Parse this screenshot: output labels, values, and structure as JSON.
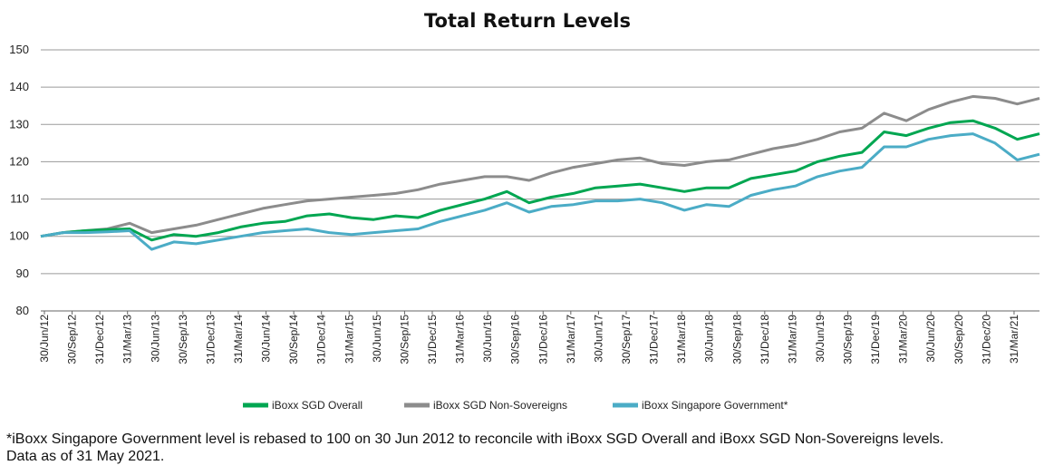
{
  "chart_data": {
    "type": "line",
    "title": "Total Return Levels",
    "ylim": [
      80,
      150
    ],
    "yticks": [
      80,
      90,
      100,
      110,
      120,
      130,
      140,
      150
    ],
    "grid": "horizontal",
    "legend_position": "bottom",
    "x_tick_labels": [
      "30/Jun/12",
      "30/Sep/12",
      "31/Dec/12",
      "31/Mar/13",
      "30/Jun/13",
      "30/Sep/13",
      "31/Dec/13",
      "31/Mar/14",
      "30/Jun/14",
      "30/Sep/14",
      "31/Dec/14",
      "31/Mar/15",
      "30/Jun/15",
      "30/Sep/15",
      "31/Dec/15",
      "31/Mar/16",
      "30/Jun/16",
      "30/Sep/16",
      "31/Dec/16",
      "31/Mar/17",
      "30/Jun/17",
      "30/Sep/17",
      "31/Dec/17",
      "31/Mar/18",
      "30/Jun/18",
      "30/Sep/18",
      "31/Dec/18",
      "31/Mar/19",
      "30/Jun/19",
      "30/Sep/19",
      "31/Dec/19",
      "31/Mar/20",
      "30/Jun/20",
      "30/Sep/20",
      "31/Dec/20",
      "31/Mar/21"
    ],
    "series": [
      {
        "name": "iBoxx SGD Overall",
        "color": "#00A651",
        "values": [
          100.0,
          101.0,
          101.5,
          101.8,
          102.0,
          99.0,
          100.5,
          100.0,
          101.0,
          102.5,
          103.5,
          104.0,
          105.5,
          106.0,
          105.0,
          104.5,
          105.5,
          105.0,
          107.0,
          108.5,
          110.0,
          112.0,
          109.0,
          110.5,
          111.5,
          113.0,
          113.5,
          114.0,
          113.0,
          112.0,
          113.0,
          113.0,
          115.5,
          116.5,
          117.5,
          120.0,
          121.5,
          122.5,
          128.0,
          127.0,
          129.0,
          130.5,
          131.0,
          129.0,
          126.0,
          127.5
        ]
      },
      {
        "name": "iBoxx SGD Non-Sovereigns",
        "color": "#8C8C8C",
        "values": [
          100.0,
          101.0,
          101.5,
          102.0,
          103.5,
          101.0,
          102.0,
          103.0,
          104.5,
          106.0,
          107.5,
          108.5,
          109.5,
          110.0,
          110.5,
          111.0,
          111.5,
          112.5,
          114.0,
          115.0,
          116.0,
          116.0,
          115.0,
          117.0,
          118.5,
          119.5,
          120.5,
          121.0,
          119.5,
          119.0,
          120.0,
          120.5,
          122.0,
          123.5,
          124.5,
          126.0,
          128.0,
          129.0,
          133.0,
          131.0,
          134.0,
          136.0,
          137.5,
          137.0,
          135.5,
          137.0
        ]
      },
      {
        "name": "iBoxx Singapore Government*",
        "color": "#4BACC6",
        "values": [
          100.0,
          101.0,
          101.0,
          101.2,
          101.5,
          96.5,
          98.5,
          98.0,
          99.0,
          100.0,
          101.0,
          101.5,
          102.0,
          101.0,
          100.5,
          101.0,
          101.5,
          102.0,
          104.0,
          105.5,
          107.0,
          109.0,
          106.5,
          108.0,
          108.5,
          109.5,
          109.5,
          110.0,
          109.0,
          107.0,
          108.5,
          108.0,
          111.0,
          112.5,
          113.5,
          116.0,
          117.5,
          118.5,
          124.0,
          124.0,
          126.0,
          127.0,
          127.5,
          125.0,
          120.5,
          122.0
        ]
      }
    ]
  },
  "footnote": {
    "line1": "*iBoxx Singapore Government level is rebased to 100 on 30 Jun 2012 to reconcile with iBoxx SGD Overall and iBoxx SGD Non-Sovereigns levels.",
    "line2": "Data as of 31 May 2021."
  }
}
